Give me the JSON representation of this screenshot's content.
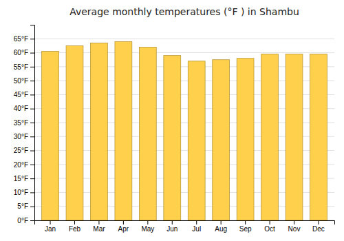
{
  "chart_data": {
    "type": "bar",
    "title": "Average monthly temperatures (°F ) in Shambu",
    "categories": [
      "Jan",
      "Feb",
      "Mar",
      "Apr",
      "May",
      "Jun",
      "Jul",
      "Aug",
      "Sep",
      "Oct",
      "Nov",
      "Dec"
    ],
    "values": [
      60.5,
      62.5,
      63.5,
      64.0,
      62.0,
      59.0,
      57.0,
      57.5,
      58.0,
      59.5,
      59.5,
      59.5
    ],
    "color": "#FFD04B",
    "ylim": [
      0,
      70
    ],
    "yticks": [
      {
        "value": 0,
        "label": "0°F"
      },
      {
        "value": 5,
        "label": "5°F"
      },
      {
        "value": 10,
        "label": "10°F"
      },
      {
        "value": 15,
        "label": "15°F"
      },
      {
        "value": 20,
        "label": "20°F"
      },
      {
        "value": 25,
        "label": "25°F"
      },
      {
        "value": 30,
        "label": "30°F"
      },
      {
        "value": 35,
        "label": "35°F"
      },
      {
        "value": 40,
        "label": "40°F"
      },
      {
        "value": 45,
        "label": "45°F"
      },
      {
        "value": 50,
        "label": "50°F"
      },
      {
        "value": 55,
        "label": "55°F"
      },
      {
        "value": 60,
        "label": "60°F"
      },
      {
        "value": 65,
        "label": "65°F"
      }
    ],
    "grid": true
  }
}
